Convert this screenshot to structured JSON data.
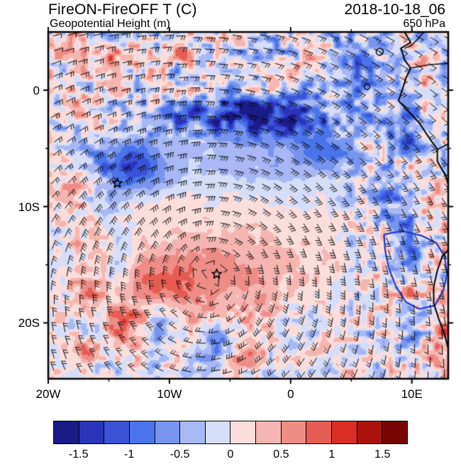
{
  "header": {
    "title": "FireON-FireOFF T (C)",
    "subtitle": "Geopotential Height (m)",
    "datetime": "2018-10-18_06",
    "level": "650 hPa"
  },
  "chart_data": {
    "type": "heatmap",
    "subtype": "filled-contour difference map with wind barbs, coastlines and star markers",
    "title": "FireON-FireOFF T (C)",
    "overlay_field": "Geopotential Height (m)",
    "time": "2018-10-18_06",
    "pressure_level": "650 hPa",
    "x_axis": {
      "range_lon": [
        -20,
        13
      ],
      "ticks": [
        -20,
        -10,
        0,
        10
      ],
      "tick_labels": [
        "20W",
        "10W",
        "0",
        "10E"
      ],
      "minor_ticks": [
        -15,
        -5,
        5
      ]
    },
    "y_axis": {
      "range_lat": [
        5,
        -24.8
      ],
      "ticks": [
        0,
        -10,
        -20
      ],
      "tick_labels": [
        "0",
        "10S",
        "20S"
      ],
      "minor_ticks": [
        -5,
        -15
      ]
    },
    "colorbar": {
      "level_min": -1.5,
      "level_step": 0.25,
      "tick_labels": [
        "-1.5",
        "-1",
        "-0.5",
        "0",
        "0.5",
        "1",
        "1.5"
      ],
      "label_boundary_indices": [
        1,
        3,
        5,
        7,
        9,
        11,
        13
      ],
      "cell_colors": [
        "#191c87",
        "#2a34b8",
        "#3a53d6",
        "#4a74e8",
        "#7795ee",
        "#a7b8f4",
        "#d6ddf9",
        "#fbdddb",
        "#f5b6b1",
        "#ee8d85",
        "#e55c52",
        "#d92f26",
        "#ab120d",
        "#7a0403"
      ]
    },
    "anomaly_features": [
      {
        "lon": -6.0,
        "lat": -15.5,
        "sx": 9.0,
        "sy": 4.6,
        "amp": 0.42
      },
      {
        "lon": -11.5,
        "lat": -16.5,
        "sx": 3.2,
        "sy": 2.4,
        "amp": 0.55
      },
      {
        "lon": -6.0,
        "lat": -16.0,
        "sx": 3.5,
        "sy": 2.5,
        "amp": 0.25
      },
      {
        "lon": -13.5,
        "lat": -20.3,
        "sx": 1.8,
        "sy": 1.4,
        "amp": 0.85
      },
      {
        "lon": -17.2,
        "lat": -22.3,
        "sx": 1.6,
        "sy": 1.2,
        "amp": 0.8
      },
      {
        "lon": -4.3,
        "lat": -23.2,
        "sx": 2.2,
        "sy": 1.3,
        "amp": 0.75
      },
      {
        "lon": -3.0,
        "lat": -2.3,
        "sx": 7.5,
        "sy": 2.0,
        "amp": -1.5
      },
      {
        "lon": -13.2,
        "lat": -6.5,
        "sx": 3.0,
        "sy": 2.2,
        "amp": -1.15
      },
      {
        "lon": -3.0,
        "lat": -6.5,
        "sx": 7.0,
        "sy": 2.3,
        "amp": -0.35
      },
      {
        "lon": 3.2,
        "lat": -5.3,
        "sx": 3.2,
        "sy": 1.6,
        "amp": -0.7
      },
      {
        "lon": 7.6,
        "lat": -9.2,
        "sx": 2.0,
        "sy": 2.2,
        "amp": -0.65
      },
      {
        "lon": 9.6,
        "lat": -13.0,
        "sx": 1.6,
        "sy": 2.4,
        "amp": -0.55
      },
      {
        "lon": -6.2,
        "lat": -22.4,
        "sx": 1.3,
        "sy": 1.9,
        "amp": -1.1
      },
      {
        "lon": -11.2,
        "lat": -20.2,
        "sx": 1.1,
        "sy": 1.6,
        "amp": -0.75
      },
      {
        "lon": -14.2,
        "lat": -14.5,
        "sx": 1.3,
        "sy": 3.5,
        "amp": -0.45
      },
      {
        "lon": 5.8,
        "lat": 2.3,
        "sx": 2.6,
        "sy": 2.0,
        "amp": -0.85
      },
      {
        "lon": 9.8,
        "lat": -3.2,
        "sx": 1.4,
        "sy": 2.0,
        "amp": -0.85
      },
      {
        "lon": -16.5,
        "lat": 2.3,
        "sx": 4.0,
        "sy": 2.6,
        "amp": 0.3
      },
      {
        "lon": -9.3,
        "lat": 3.2,
        "sx": 2.2,
        "sy": 1.2,
        "amp": 0.45
      },
      {
        "lon": 12.8,
        "lat": -20.8,
        "sx": 1.6,
        "sy": 2.2,
        "amp": 0.6
      },
      {
        "lon": -18.6,
        "lat": -9.5,
        "sx": 1.4,
        "sy": 2.0,
        "amp": 0.5
      },
      {
        "lon": -16.8,
        "lat": -17.8,
        "sx": 1.5,
        "sy": 1.5,
        "amp": 0.5
      }
    ],
    "noise": {
      "base": 0.18,
      "octave1_scale": 0.55,
      "octave2_scale": 1.6,
      "regions": [
        {
          "type": "lat_above",
          "value": -3.0,
          "width": 2.0,
          "amp": 1.05
        },
        {
          "type": "lon_above",
          "value": 6.0,
          "width": 3.0,
          "amp": 1.0
        },
        {
          "type": "lat_below",
          "value": -19.5,
          "width": 2.5,
          "amp": 0.7
        },
        {
          "type": "lon_below",
          "value": -15.5,
          "width": 2.5,
          "amp": 0.65
        }
      ]
    },
    "wind": {
      "center_lon": -6.5,
      "center_lat": -15.5,
      "max_speed": 12,
      "radius_deg": 7,
      "bg_u": -2.0,
      "bg_v": 0.5,
      "grid_step_deg": 1.15
    },
    "markers": [
      {
        "lon": -14.3,
        "lat": -8.0
      },
      {
        "lon": -6.1,
        "lat": -15.8
      }
    ],
    "map_overlays": {
      "coast_color": "#000000",
      "river_color": "#2438cc",
      "coastline": [
        [
          9.4,
          5.0
        ],
        [
          9.9,
          4.1
        ],
        [
          9.1,
          3.6
        ],
        [
          9.4,
          2.6
        ],
        [
          9.9,
          1.9
        ],
        [
          9.5,
          1.0
        ],
        [
          9.2,
          0.0
        ],
        [
          8.9,
          -0.9
        ],
        [
          9.7,
          -1.8
        ],
        [
          10.6,
          -2.8
        ],
        [
          11.3,
          -3.9
        ],
        [
          12.1,
          -5.1
        ],
        [
          12.1,
          -6.1
        ],
        [
          12.8,
          -7.4
        ],
        [
          13.2,
          -8.8
        ],
        [
          13.0,
          -9.9
        ],
        [
          13.5,
          -11.2
        ],
        [
          13.8,
          -12.4
        ],
        [
          13.3,
          -13.4
        ],
        [
          12.5,
          -14.3
        ],
        [
          12.1,
          -15.5
        ],
        [
          11.8,
          -16.9
        ],
        [
          11.8,
          -18.3
        ],
        [
          12.2,
          -19.6
        ],
        [
          12.7,
          -21.0
        ],
        [
          13.0,
          -22.2
        ],
        [
          13.0,
          -24.8
        ]
      ],
      "borders": [
        [
          [
            11.0,
            5.0
          ],
          [
            10.4,
            4.3
          ],
          [
            9.9,
            3.8
          ],
          [
            9.4,
            3.6
          ]
        ],
        [
          [
            9.9,
            1.9
          ],
          [
            11.5,
            2.2
          ],
          [
            13.0,
            2.3
          ]
        ],
        [
          [
            12.1,
            -5.1
          ],
          [
            13.2,
            -4.5
          ],
          [
            13.0,
            -3.2
          ]
        ]
      ],
      "islands": [
        {
          "lon": 7.35,
          "lat": 3.3,
          "r": 5
        },
        {
          "lon": 6.3,
          "lat": 0.3,
          "r": 4
        }
      ],
      "river": [
        [
          7.7,
          -12.4
        ],
        [
          9.2,
          -12.1
        ],
        [
          10.8,
          -12.5
        ],
        [
          12.0,
          -13.1
        ],
        [
          12.7,
          -14.3
        ],
        [
          12.9,
          -15.8
        ],
        [
          12.6,
          -17.2
        ],
        [
          11.9,
          -18.5
        ],
        [
          10.6,
          -18.8
        ],
        [
          9.5,
          -18.2
        ],
        [
          8.7,
          -16.9
        ],
        [
          8.1,
          -15.3
        ],
        [
          7.8,
          -13.8
        ],
        [
          7.7,
          -12.4
        ]
      ]
    }
  }
}
